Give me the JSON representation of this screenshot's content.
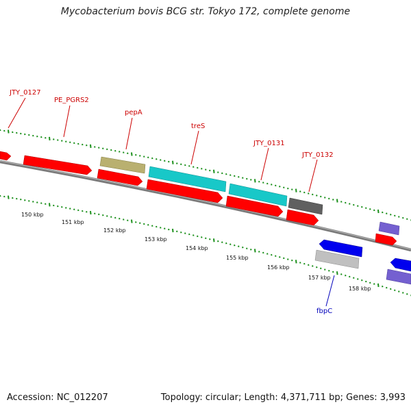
{
  "title": "Mycobacterium bovis BCG str. Tokyo 172, complete genome",
  "footer": {
    "accession": "Accession: NC_012207",
    "stats": "Topology: circular; Length: 4,371,711 bp; Genes: 3,993"
  },
  "colors": {
    "label_forward": "#cc0000",
    "label_reverse": "#0000bb",
    "tick": "#1a8f1a",
    "backbone": "#808080"
  },
  "scale_labels": [
    "150 kbp",
    "151 kbp",
    "152 kbp",
    "153 kbp",
    "154 kbp",
    "155 kbp",
    "156 kbp",
    "157 kbp",
    "158 kbp"
  ],
  "gene_labels": [
    {
      "name": "JTY_0127",
      "strand": "forward"
    },
    {
      "name": "PE_PGRS2",
      "strand": "forward"
    },
    {
      "name": "pepA",
      "strand": "forward"
    },
    {
      "name": "treS",
      "strand": "forward"
    },
    {
      "name": "JTY_0131",
      "strand": "forward"
    },
    {
      "name": "JTY_0132",
      "strand": "forward"
    },
    {
      "name": "fbpC",
      "strand": "reverse"
    }
  ],
  "features": [
    {
      "track": "forward-cds",
      "color": "#ff0000",
      "strand": "forward"
    },
    {
      "track": "forward-cds",
      "color": "#ff0000",
      "strand": "forward"
    },
    {
      "track": "forward-cds",
      "color": "#ff0000",
      "strand": "forward"
    },
    {
      "track": "forward-cds",
      "color": "#ff0000",
      "strand": "forward"
    },
    {
      "track": "forward-cds",
      "color": "#ff0000",
      "strand": "forward"
    },
    {
      "track": "forward-cds",
      "color": "#ff0000",
      "strand": "forward"
    },
    {
      "track": "forward-cds",
      "color": "#ff0000",
      "strand": "forward"
    },
    {
      "track": "forward-cds",
      "color": "#ff0000",
      "strand": "forward"
    },
    {
      "track": "cog",
      "color": "#b9b070",
      "strand": "forward"
    },
    {
      "track": "cog",
      "color": "#18c8c8",
      "strand": "forward"
    },
    {
      "track": "cog",
      "color": "#18c8c8",
      "strand": "forward"
    },
    {
      "track": "cog",
      "color": "#606060",
      "strand": "forward"
    },
    {
      "track": "cog",
      "color": "#7460d0",
      "strand": "forward"
    },
    {
      "track": "reverse-cds",
      "color": "#0000ee",
      "strand": "reverse"
    },
    {
      "track": "reverse-cds",
      "color": "#0000ee",
      "strand": "reverse"
    },
    {
      "track": "cog",
      "color": "#c0c0c0",
      "strand": "reverse"
    },
    {
      "track": "cog",
      "color": "#7460d0",
      "strand": "reverse"
    }
  ]
}
